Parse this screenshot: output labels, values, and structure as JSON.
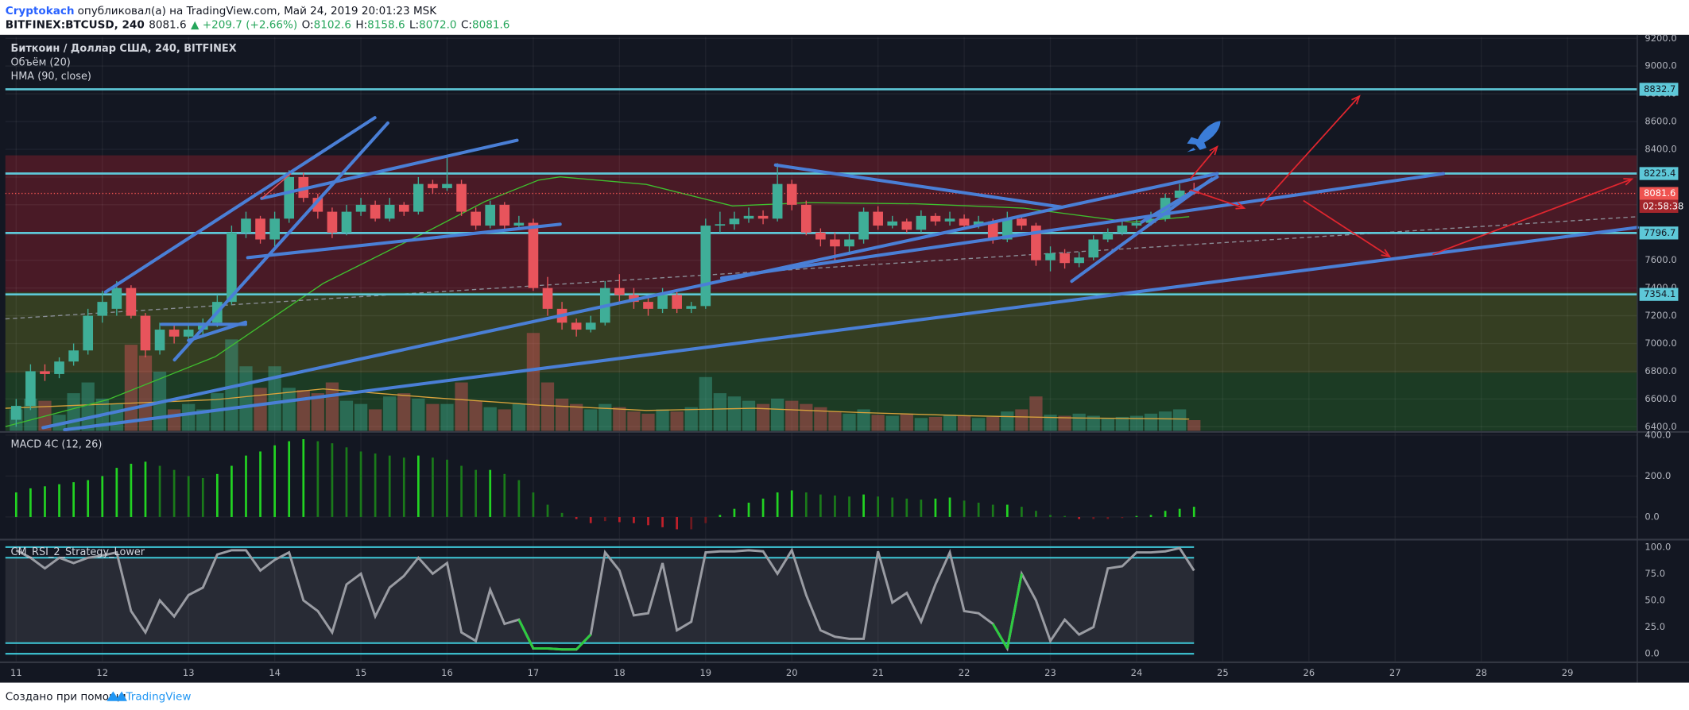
{
  "header": {
    "author": "Cryptokach",
    "published": "опубликовал(а) на TradingView.com, Май 24, 2019 20:01:23 MSK",
    "symbol": "BITFINEX:BTCUSD, 240",
    "last": "8081.6",
    "change": "▲ +209.7 (+2.66%)",
    "ohlc": [
      {
        "key": "O:",
        "value": "8102.6"
      },
      {
        "key": "H:",
        "value": "8158.6"
      },
      {
        "key": "L:",
        "value": "8072.0"
      },
      {
        "key": "C:",
        "value": "8081.6"
      }
    ]
  },
  "footer": {
    "text": "Создано при помощи",
    "brand": "TradingView"
  },
  "chart_data": [
    {
      "type": "candlestick",
      "legend": [
        "Биткоин / Доллар США, 240, BITFINEX",
        "Объём (20)",
        "HMA (90, close)"
      ],
      "open": [
        6450,
        6550,
        6800,
        6780,
        6870,
        6950,
        7200,
        7250,
        7400,
        7200,
        6950,
        7100,
        7050,
        7100,
        7150,
        7300,
        7800,
        7900,
        7750,
        7900,
        8200,
        8050,
        7950,
        7800,
        7950,
        8000,
        7900,
        8000,
        7950,
        8150,
        8120,
        8150,
        7950,
        7850,
        8000,
        7850,
        7870,
        7400,
        7250,
        7150,
        7100,
        7150,
        7400,
        7350,
        7300,
        7250,
        7350,
        7250,
        7270,
        7850,
        7860,
        7900,
        7920,
        7900,
        8150,
        8000,
        7800,
        7750,
        7700,
        7750,
        7950,
        7850,
        7880,
        7820,
        7920,
        7880,
        7900,
        7850,
        7880,
        7750,
        7900,
        7850,
        7600,
        7650,
        7580,
        7620,
        7750,
        7800,
        7850,
        7870,
        7900,
        8050,
        8102.6
      ],
      "high": [
        6600,
        6850,
        6850,
        6900,
        7000,
        7250,
        7380,
        7450,
        7420,
        7220,
        7150,
        7130,
        7130,
        7180,
        7350,
        7850,
        7950,
        7920,
        7950,
        8250,
        8230,
        8080,
        7980,
        8000,
        8050,
        8030,
        8050,
        8020,
        8200,
        8180,
        8350,
        8180,
        7980,
        8030,
        8020,
        7920,
        7900,
        7480,
        7300,
        7180,
        7200,
        7450,
        7500,
        7400,
        7330,
        7400,
        7380,
        7300,
        7900,
        7950,
        7950,
        7980,
        7960,
        8300,
        8180,
        8030,
        7830,
        7800,
        7800,
        7980,
        7990,
        7920,
        7900,
        7960,
        7940,
        7950,
        7930,
        7920,
        7900,
        7950,
        7930,
        7870,
        7700,
        7680,
        7660,
        7780,
        7830,
        7880,
        7900,
        7950,
        8080,
        8150,
        8158.6
      ],
      "low": [
        6400,
        6520,
        6730,
        6750,
        6840,
        6920,
        7150,
        7200,
        7180,
        6900,
        6920,
        7000,
        7020,
        7060,
        7120,
        7280,
        7760,
        7720,
        7700,
        7870,
        8020,
        7900,
        7760,
        7780,
        7920,
        7880,
        7880,
        7920,
        7930,
        8080,
        8100,
        7920,
        7820,
        7830,
        7820,
        7820,
        7380,
        7200,
        7100,
        7050,
        7080,
        7130,
        7300,
        7250,
        7200,
        7220,
        7220,
        7220,
        7250,
        7800,
        7820,
        7870,
        7860,
        7880,
        7960,
        7780,
        7700,
        7600,
        7650,
        7720,
        7820,
        7830,
        7800,
        7800,
        7850,
        7850,
        7820,
        7830,
        7720,
        7730,
        7820,
        7560,
        7520,
        7540,
        7550,
        7600,
        7730,
        7780,
        7830,
        7850,
        7880,
        8030,
        8072
      ],
      "close": [
        6550,
        6800,
        6780,
        6870,
        6950,
        7200,
        7300,
        7400,
        7200,
        6950,
        7100,
        7050,
        7100,
        7150,
        7300,
        7800,
        7900,
        7750,
        7900,
        8200,
        8050,
        7950,
        7800,
        7950,
        8000,
        7900,
        8000,
        7950,
        8150,
        8120,
        8150,
        7950,
        7850,
        8000,
        7850,
        7870,
        7400,
        7250,
        7150,
        7100,
        7150,
        7400,
        7350,
        7300,
        7250,
        7350,
        7250,
        7270,
        7850,
        7860,
        7900,
        7920,
        7900,
        8150,
        8000,
        7800,
        7750,
        7700,
        7750,
        7950,
        7850,
        7880,
        7820,
        7920,
        7880,
        7900,
        7850,
        7880,
        7750,
        7900,
        7850,
        7600,
        7650,
        7580,
        7620,
        7750,
        7800,
        7850,
        7870,
        7900,
        8050,
        8102.6,
        8081.6
      ],
      "volume": [
        20,
        30,
        28,
        15,
        35,
        45,
        30,
        25,
        80,
        70,
        55,
        20,
        25,
        20,
        35,
        85,
        60,
        40,
        60,
        40,
        38,
        35,
        45,
        28,
        25,
        20,
        32,
        35,
        30,
        25,
        25,
        45,
        28,
        22,
        20,
        25,
        91,
        45,
        30,
        25,
        20,
        25,
        22,
        18,
        16,
        20,
        18,
        22,
        50,
        35,
        32,
        28,
        25,
        30,
        28,
        25,
        22,
        18,
        16,
        20,
        15,
        14,
        16,
        12,
        13,
        15,
        14,
        12,
        13,
        18,
        20,
        32,
        15,
        14,
        16,
        14,
        12,
        13,
        14,
        16,
        18,
        20,
        10
      ],
      "volume_ylim": [
        0,
        100
      ],
      "up_color": "#3fae98",
      "down_color": "#e8545c",
      "xlim": [
        10.875,
        29.81
      ],
      "xticks": [
        11,
        12,
        13,
        14,
        15,
        16,
        17,
        18,
        19,
        20,
        21,
        22,
        23,
        24,
        25,
        26,
        27,
        28,
        29
      ],
      "ylim": [
        6370,
        9210
      ],
      "yticks": [
        {
          "value": 6400,
          "label": "6400.0"
        },
        {
          "value": 6600,
          "label": "6600.0"
        },
        {
          "value": 6800,
          "label": "6800.0"
        },
        {
          "value": 7000,
          "label": "7000.0"
        },
        {
          "value": 7200,
          "label": "7200.0"
        },
        {
          "value": 7400,
          "label": "7400.0"
        },
        {
          "value": 7600,
          "label": "7600.0"
        },
        {
          "value": 7800,
          "label": "7800.0"
        },
        {
          "value": 8000,
          "label": "8000.0"
        },
        {
          "value": 8200,
          "label": "8200.0"
        },
        {
          "value": 8400,
          "label": "8400.0"
        },
        {
          "value": 8600,
          "label": "8600.0"
        },
        {
          "value": 8800,
          "label": "8800.0"
        },
        {
          "value": 9000,
          "label": "9000.0"
        },
        {
          "value": 9200,
          "label": "9200.0"
        }
      ],
      "levels": [
        8832.7,
        8225.4,
        7796.7,
        7354.1
      ],
      "level_color": "#5ec8d8",
      "last_price": {
        "value": 8081.6,
        "countdown": "02:58:38",
        "color": "#ef5350"
      },
      "grid": true
    },
    {
      "type": "bar",
      "title": "MACD 4C (12, 26)",
      "values": [
        120,
        140,
        150,
        160,
        170,
        180,
        200,
        240,
        260,
        270,
        250,
        230,
        200,
        190,
        210,
        250,
        300,
        320,
        350,
        370,
        380,
        370,
        360,
        340,
        320,
        310,
        300,
        290,
        300,
        290,
        280,
        250,
        230,
        230,
        210,
        180,
        120,
        60,
        20,
        -10,
        -30,
        -20,
        -25,
        -30,
        -40,
        -50,
        -60,
        -60,
        -30,
        10,
        40,
        70,
        90,
        120,
        130,
        120,
        110,
        105,
        100,
        110,
        100,
        95,
        90,
        85,
        90,
        95,
        80,
        70,
        60,
        60,
        50,
        30,
        10,
        5,
        -10,
        -10,
        -10,
        -5,
        5,
        10,
        30,
        40,
        50
      ],
      "colors": [
        "#22d322",
        "#1a7a1a",
        "#c0202a",
        "#6e1a20"
      ],
      "ylim": [
        -105,
        410
      ],
      "yticks": [
        {
          "value": 0,
          "label": "0.0"
        },
        {
          "value": 200,
          "label": "200.0"
        },
        {
          "value": 400,
          "label": "400.0"
        }
      ]
    },
    {
      "type": "line",
      "title": "CM_RSI_2_Strategy_Lower",
      "values": [
        97,
        90,
        80,
        90,
        85,
        90,
        92,
        95,
        40,
        20,
        50,
        35,
        55,
        62,
        93,
        97,
        97,
        78,
        88,
        95,
        50,
        40,
        20,
        65,
        75,
        35,
        62,
        73,
        90,
        75,
        85,
        20,
        12,
        60,
        28,
        32,
        5,
        5,
        4,
        4,
        18,
        95,
        78,
        36,
        38,
        85,
        22,
        30,
        95,
        96,
        96,
        97,
        96,
        75,
        97,
        55,
        22,
        16,
        14,
        14,
        96,
        48,
        57,
        30,
        65,
        95,
        40,
        38,
        28,
        5,
        75,
        50,
        12,
        32,
        18,
        25,
        80,
        82,
        95,
        95,
        96,
        99,
        78
      ],
      "color": "#9a9ca3",
      "highlight_color": "#2ecc40",
      "band_color": "#3ec8d8",
      "bands": [
        0,
        10,
        90,
        100
      ],
      "ylim": [
        -8,
        106
      ],
      "yticks": [
        {
          "value": 0,
          "label": "0.0"
        },
        {
          "value": 25,
          "label": "25.0"
        },
        {
          "value": 50,
          "label": "50.0"
        },
        {
          "value": 75,
          "label": "75.0"
        },
        {
          "value": 100,
          "label": "100.0"
        }
      ]
    }
  ]
}
